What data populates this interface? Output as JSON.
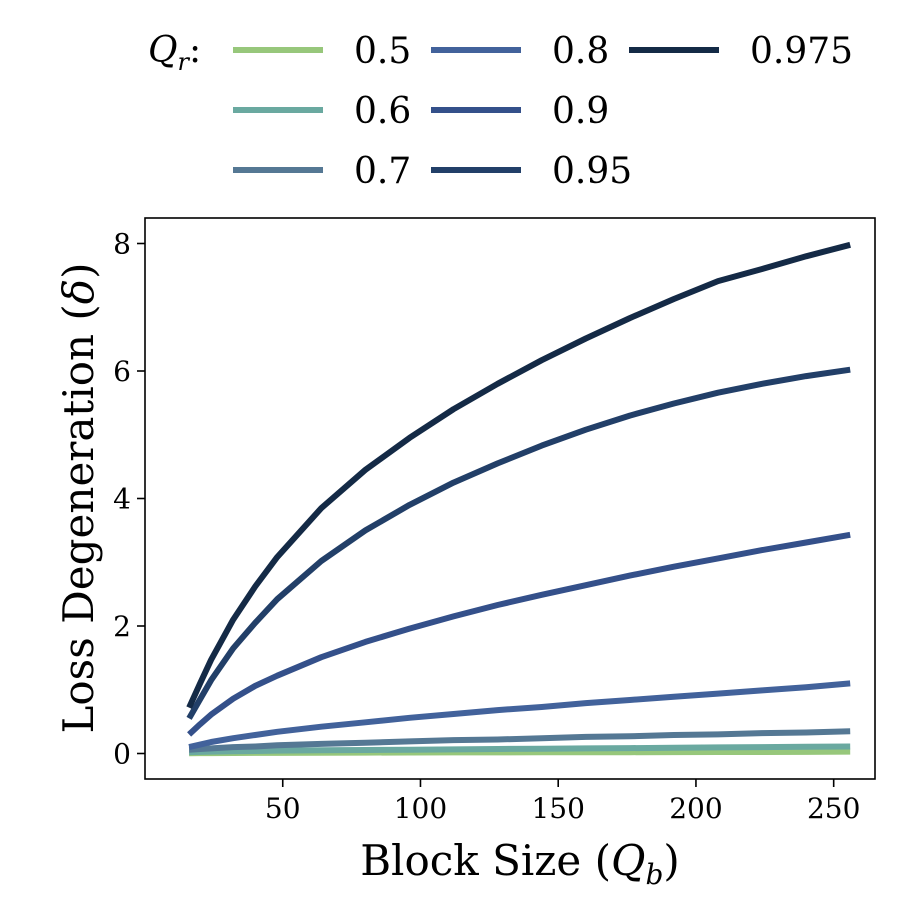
{
  "chart_data": {
    "type": "line",
    "title": "",
    "xlabel": "Block Size (Q_b)",
    "xlabel_parts": {
      "prefix": "Block Size (",
      "var": "Q",
      "sub": "b",
      "suffix": ")"
    },
    "ylabel": "Loss Degeneration (δ)",
    "ylabel_parts": {
      "prefix": "Loss Degeneration (",
      "var": "δ",
      "suffix": ")"
    },
    "xlim": [
      0,
      265
    ],
    "ylim": [
      -0.4,
      8.4
    ],
    "xticks": [
      50,
      100,
      150,
      200,
      250
    ],
    "yticks": [
      0,
      2,
      4,
      6,
      8
    ],
    "legend": {
      "placement": "top",
      "title": "Q_r:",
      "title_parts": {
        "var": "Q",
        "sub": "r",
        "suffix": ":"
      }
    },
    "x": [
      16,
      20,
      24,
      32,
      40,
      48,
      64,
      80,
      96,
      112,
      128,
      144,
      160,
      176,
      192,
      208,
      224,
      240,
      256
    ],
    "series": [
      {
        "name": "0.5",
        "color": "#97c77b",
        "values": [
          0.005,
          0.006,
          0.007,
          0.008,
          0.009,
          0.01,
          0.012,
          0.014,
          0.015,
          0.017,
          0.018,
          0.019,
          0.02,
          0.021,
          0.022,
          0.023,
          0.024,
          0.025,
          0.03
        ]
      },
      {
        "name": "0.6",
        "color": "#6aa9a0",
        "values": [
          0.02,
          0.025,
          0.03,
          0.035,
          0.04,
          0.045,
          0.05,
          0.055,
          0.06,
          0.065,
          0.07,
          0.075,
          0.08,
          0.085,
          0.09,
          0.095,
          0.1,
          0.105,
          0.11
        ]
      },
      {
        "name": "0.7",
        "color": "#557894",
        "values": [
          0.06,
          0.07,
          0.08,
          0.1,
          0.11,
          0.13,
          0.15,
          0.17,
          0.19,
          0.21,
          0.22,
          0.24,
          0.26,
          0.27,
          0.29,
          0.3,
          0.32,
          0.33,
          0.35
        ]
      },
      {
        "name": "0.8",
        "color": "#42629b",
        "values": [
          0.1,
          0.14,
          0.18,
          0.24,
          0.29,
          0.34,
          0.42,
          0.49,
          0.56,
          0.62,
          0.68,
          0.73,
          0.79,
          0.84,
          0.89,
          0.94,
          0.99,
          1.04,
          1.1
        ]
      },
      {
        "name": "0.9",
        "color": "#34508a",
        "values": [
          0.3,
          0.46,
          0.61,
          0.86,
          1.06,
          1.22,
          1.51,
          1.75,
          1.96,
          2.15,
          2.33,
          2.49,
          2.64,
          2.79,
          2.93,
          3.06,
          3.19,
          3.31,
          3.43
        ]
      },
      {
        "name": "0.95",
        "color": "#223f68",
        "values": [
          0.55,
          0.85,
          1.15,
          1.65,
          2.05,
          2.42,
          3.02,
          3.5,
          3.9,
          4.25,
          4.55,
          4.83,
          5.08,
          5.3,
          5.49,
          5.66,
          5.8,
          5.92,
          6.02
        ]
      },
      {
        "name": "0.975",
        "color": "#142a46",
        "values": [
          0.72,
          1.1,
          1.47,
          2.1,
          2.62,
          3.08,
          3.85,
          4.45,
          4.95,
          5.4,
          5.8,
          6.17,
          6.51,
          6.83,
          7.13,
          7.41,
          7.6,
          7.8,
          7.98
        ]
      }
    ]
  }
}
